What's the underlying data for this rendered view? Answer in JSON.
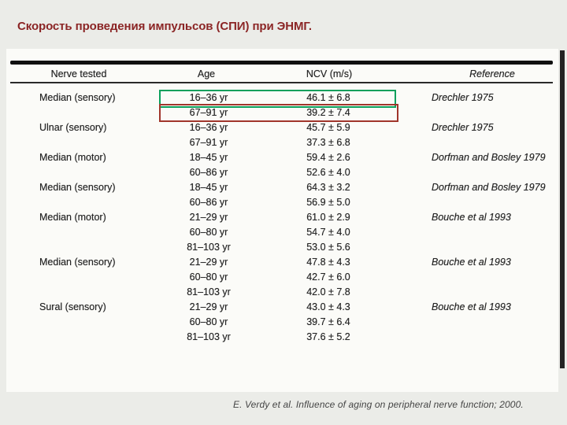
{
  "slide": {
    "title": "Скорость проведения импульсов (СПИ) при ЭНМГ.",
    "title_color": "#8b2525",
    "citation": "E. Verdy et al.  Influence of aging on peripheral nerve function; 2000."
  },
  "table": {
    "columns": [
      "Nerve tested",
      "Age",
      "NCV (m/s)",
      "Reference"
    ],
    "rows": [
      {
        "nerve": "Median (sensory)",
        "age": "16–36 yr",
        "ncv": "46.1 ± 6.8",
        "ref": "Drechler 1975",
        "highlight": "green"
      },
      {
        "nerve": "",
        "age": "67–91 yr",
        "ncv": "39.2 ± 7.4",
        "ref": "",
        "highlight": "red"
      },
      {
        "nerve": "Ulnar (sensory)",
        "age": "16–36 yr",
        "ncv": "45.7 ± 5.9",
        "ref": "Drechler 1975",
        "highlight": ""
      },
      {
        "nerve": "",
        "age": "67–91 yr",
        "ncv": "37.3 ± 6.8",
        "ref": "",
        "highlight": ""
      },
      {
        "nerve": "Median (motor)",
        "age": "18–45 yr",
        "ncv": "59.4 ± 2.6",
        "ref": "Dorfman and Bosley 1979",
        "highlight": ""
      },
      {
        "nerve": "",
        "age": "60–86 yr",
        "ncv": "52.6 ± 4.0",
        "ref": "",
        "highlight": ""
      },
      {
        "nerve": "Median (sensory)",
        "age": "18–45 yr",
        "ncv": "64.3 ± 3.2",
        "ref": "Dorfman and Bosley 1979",
        "highlight": ""
      },
      {
        "nerve": "",
        "age": "60–86 yr",
        "ncv": "56.9 ± 5.0",
        "ref": "",
        "highlight": ""
      },
      {
        "nerve": "Median (motor)",
        "age": "21–29 yr",
        "ncv": "61.0 ± 2.9",
        "ref": "Bouche et al 1993",
        "highlight": ""
      },
      {
        "nerve": "",
        "age": "60–80 yr",
        "ncv": "54.7 ± 4.0",
        "ref": "",
        "highlight": ""
      },
      {
        "nerve": "",
        "age": "81–103 yr",
        "ncv": "53.0 ± 5.6",
        "ref": "",
        "highlight": ""
      },
      {
        "nerve": "Median (sensory)",
        "age": "21–29 yr",
        "ncv": "47.8 ± 4.3",
        "ref": "Bouche et al 1993",
        "highlight": ""
      },
      {
        "nerve": "",
        "age": "60–80 yr",
        "ncv": "42.7 ± 6.0",
        "ref": "",
        "highlight": ""
      },
      {
        "nerve": "",
        "age": "81–103 yr",
        "ncv": "42.0 ± 7.8",
        "ref": "",
        "highlight": ""
      },
      {
        "nerve": "Sural (sensory)",
        "age": "21–29 yr",
        "ncv": "43.0 ± 4.3",
        "ref": "Bouche et al 1993",
        "highlight": ""
      },
      {
        "nerve": "",
        "age": "60–80 yr",
        "ncv": "39.7 ± 6.4",
        "ref": "",
        "highlight": ""
      },
      {
        "nerve": "",
        "age": "81–103 yr",
        "ncv": "37.6 ± 5.2",
        "ref": "",
        "highlight": ""
      }
    ],
    "highlight_colors": {
      "green": "#0aa05c",
      "red": "#a0352b"
    }
  }
}
